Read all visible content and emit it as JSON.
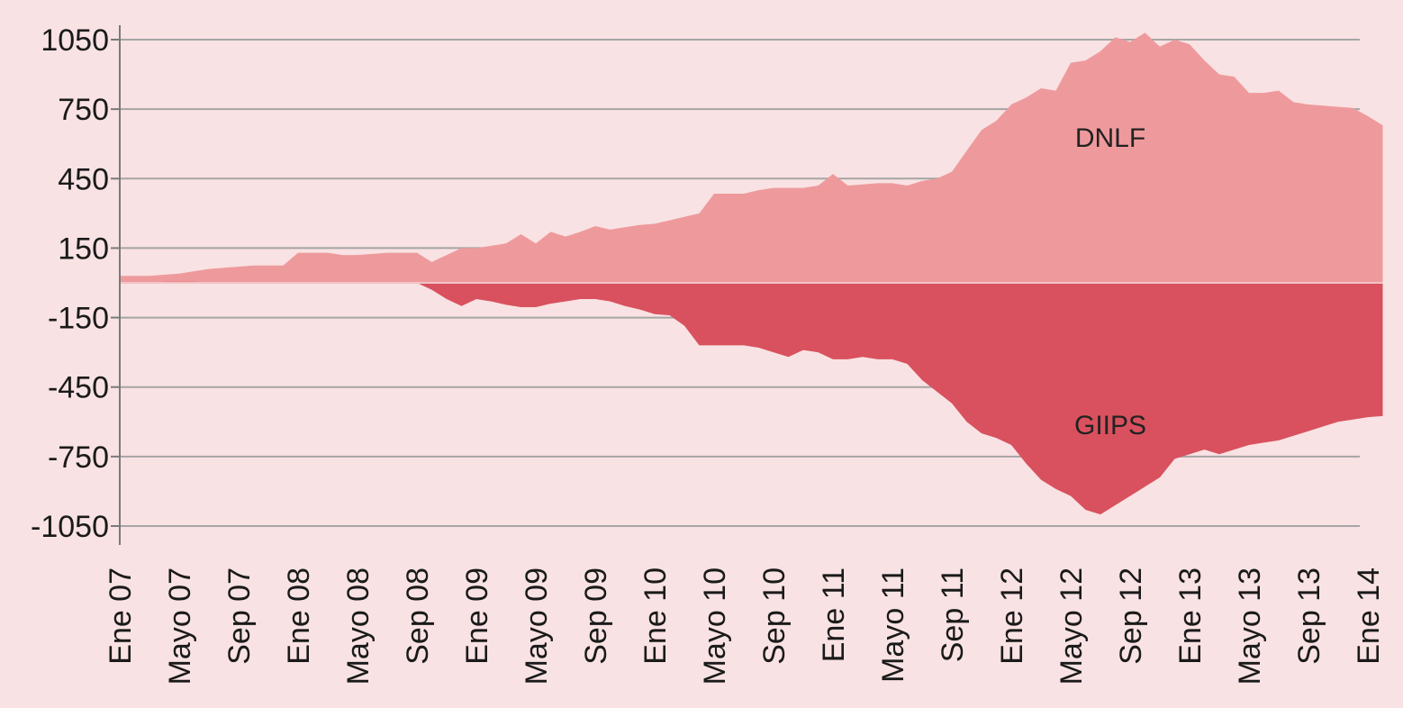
{
  "chart_data": {
    "type": "area",
    "title": "",
    "xlabel": "",
    "ylabel": "",
    "ylim": [
      -1050,
      1050
    ],
    "yticks": [
      1050,
      750,
      450,
      150,
      -150,
      -450,
      -750,
      -1050
    ],
    "xticks": [
      "Ene 07",
      "Mayo 07",
      "Sep 07",
      "Ene 08",
      "Mayo 08",
      "Sep 08",
      "Ene 09",
      "Mayo 09",
      "Sep 09",
      "Ene 10",
      "Mayo 10",
      "Sep 10",
      "Ene 11",
      "Mayo 11",
      "Sep 11",
      "Ene 12",
      "Mayo 12",
      "Sep 12",
      "Ene 13",
      "Mayo 13",
      "Sep 13",
      "Ene 14"
    ],
    "grid": true,
    "colors": {
      "background": "#f9e2e3",
      "DNLF": "#ee9a9c",
      "GIIPS": "#d9515e",
      "grid": "#a5a5a5",
      "axis": "#7a7a7a"
    },
    "series": [
      {
        "name": "DNLF",
        "x": [
          "Ene 07",
          "Feb 07",
          "Mar 07",
          "Abr 07",
          "Mayo 07",
          "Jun 07",
          "Jul 07",
          "Ago 07",
          "Sep 07",
          "Oct 07",
          "Nov 07",
          "Dic 07",
          "Ene 08",
          "Feb 08",
          "Mar 08",
          "Abr 08",
          "Mayo 08",
          "Jun 08",
          "Jul 08",
          "Ago 08",
          "Sep 08",
          "Oct 08",
          "Nov 08",
          "Dic 08",
          "Ene 09",
          "Feb 09",
          "Mar 09",
          "Abr 09",
          "Mayo 09",
          "Jun 09",
          "Jul 09",
          "Ago 09",
          "Sep 09",
          "Oct 09",
          "Nov 09",
          "Dic 09",
          "Ene 10",
          "Feb 10",
          "Mar 10",
          "Abr 10",
          "Mayo 10",
          "Jun 10",
          "Jul 10",
          "Ago 10",
          "Sep 10",
          "Oct 10",
          "Nov 10",
          "Dic 10",
          "Ene 11",
          "Feb 11",
          "Mar 11",
          "Abr 11",
          "Mayo 11",
          "Jun 11",
          "Jul 11",
          "Ago 11",
          "Sep 11",
          "Oct 11",
          "Nov 11",
          "Dic 11",
          "Ene 12",
          "Feb 12",
          "Mar 12",
          "Abr 12",
          "Mayo 12",
          "Jun 12",
          "Jul 12",
          "Ago 12",
          "Sep 12",
          "Oct 12",
          "Nov 12",
          "Dic 12",
          "Ene 13",
          "Feb 13",
          "Mar 13",
          "Abr 13",
          "Mayo 13",
          "Jun 13",
          "Jul 13",
          "Ago 13",
          "Sep 13",
          "Oct 13",
          "Nov 13",
          "Dic 13",
          "Ene 14",
          "Feb 14"
        ],
        "values": [
          30,
          30,
          30,
          35,
          40,
          50,
          60,
          65,
          70,
          75,
          75,
          75,
          130,
          130,
          130,
          120,
          120,
          125,
          130,
          130,
          130,
          90,
          120,
          150,
          150,
          160,
          170,
          210,
          170,
          220,
          200,
          220,
          245,
          230,
          240,
          250,
          255,
          270,
          285,
          300,
          385,
          385,
          385,
          400,
          410,
          410,
          410,
          420,
          470,
          420,
          425,
          430,
          430,
          420,
          440,
          450,
          480,
          570,
          660,
          700,
          770,
          800,
          840,
          830,
          950,
          960,
          1000,
          1060,
          1040,
          1080,
          1020,
          1050,
          1030,
          960,
          900,
          890,
          820,
          820,
          830,
          780,
          770,
          765,
          760,
          755,
          720,
          680
        ]
      },
      {
        "name": "GIIPS",
        "x": [
          "Ene 07",
          "Feb 07",
          "Mar 07",
          "Abr 07",
          "Mayo 07",
          "Jun 07",
          "Jul 07",
          "Ago 07",
          "Sep 07",
          "Oct 07",
          "Nov 07",
          "Dic 07",
          "Ene 08",
          "Feb 08",
          "Mar 08",
          "Abr 08",
          "Mayo 08",
          "Jun 08",
          "Jul 08",
          "Ago 08",
          "Sep 08",
          "Oct 08",
          "Nov 08",
          "Dic 08",
          "Ene 09",
          "Feb 09",
          "Mar 09",
          "Abr 09",
          "Mayo 09",
          "Jun 09",
          "Jul 09",
          "Ago 09",
          "Sep 09",
          "Oct 09",
          "Nov 09",
          "Dic 09",
          "Ene 10",
          "Feb 10",
          "Mar 10",
          "Abr 10",
          "Mayo 10",
          "Jun 10",
          "Jul 10",
          "Ago 10",
          "Sep 10",
          "Oct 10",
          "Nov 10",
          "Dic 10",
          "Ene 11",
          "Feb 11",
          "Mar 11",
          "Abr 11",
          "Mayo 11",
          "Jun 11",
          "Jul 11",
          "Ago 11",
          "Sep 11",
          "Oct 11",
          "Nov 11",
          "Dic 11",
          "Ene 12",
          "Feb 12",
          "Mar 12",
          "Abr 12",
          "Mayo 12",
          "Jun 12",
          "Jul 12",
          "Ago 12",
          "Sep 12",
          "Oct 12",
          "Nov 12",
          "Dic 12",
          "Ene 13",
          "Feb 13",
          "Mar 13",
          "Abr 13",
          "Mayo 13",
          "Jun 13",
          "Jul 13",
          "Ago 13",
          "Sep 13",
          "Oct 13",
          "Nov 13",
          "Dic 13",
          "Ene 14",
          "Feb 14"
        ],
        "values": [
          0,
          0,
          0,
          5,
          5,
          5,
          0,
          0,
          0,
          0,
          0,
          0,
          0,
          0,
          0,
          0,
          0,
          0,
          0,
          0,
          0,
          -30,
          -70,
          -100,
          -70,
          -80,
          -95,
          -105,
          -105,
          -90,
          -80,
          -70,
          -70,
          -80,
          -100,
          -115,
          -135,
          -140,
          -185,
          -270,
          -270,
          -270,
          -270,
          -280,
          -300,
          -320,
          -290,
          -300,
          -330,
          -330,
          -320,
          -330,
          -330,
          -350,
          -420,
          -470,
          -520,
          -600,
          -650,
          -670,
          -700,
          -780,
          -850,
          -890,
          -920,
          -980,
          -1000,
          -960,
          -920,
          -880,
          -840,
          -760,
          -740,
          -720,
          -740,
          -720,
          -700,
          -690,
          -680,
          -660,
          -640,
          -620,
          -600,
          -590,
          -580,
          -575
        ]
      }
    ]
  }
}
